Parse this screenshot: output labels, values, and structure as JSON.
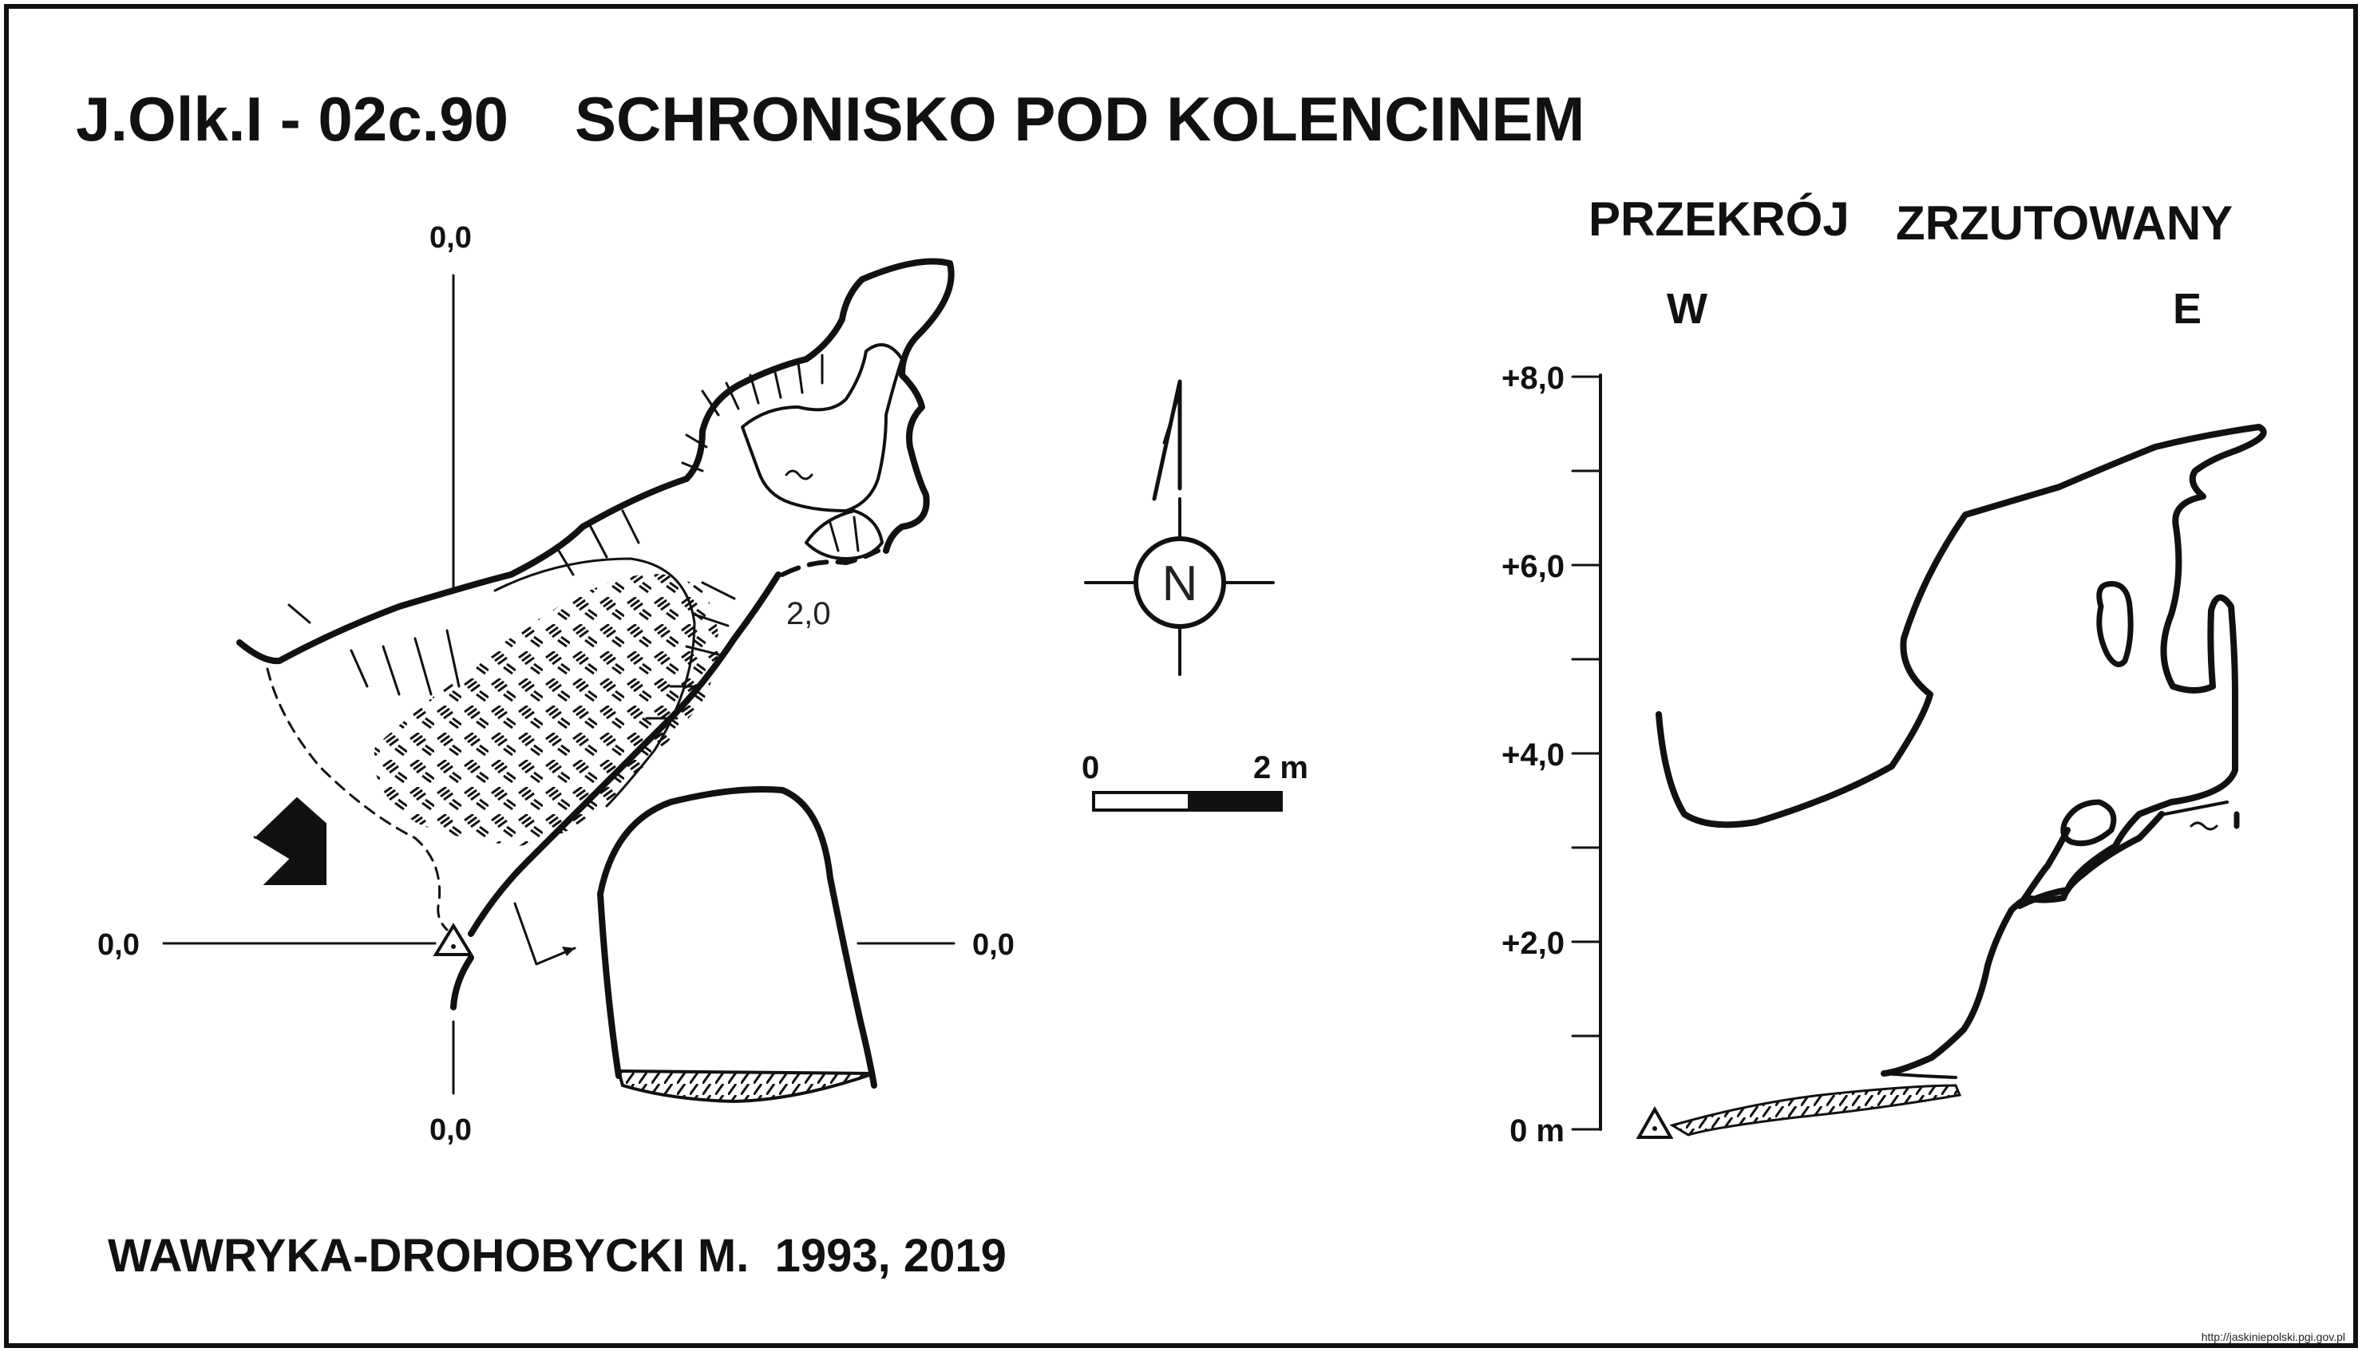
{
  "title": {
    "code": "J.Olk.I - 02c.90",
    "name": "SCHRONISKO POD KOLENCINEM"
  },
  "plan": {
    "axis_label_top": "0,0",
    "axis_label_bottom": "0,0",
    "axis_label_left": "0,0",
    "axis_label_right": "0,0",
    "depth_label": "2,0"
  },
  "compass": {
    "north_label": "N"
  },
  "scale_bar": {
    "label_start": "0",
    "label_end": "2 m"
  },
  "section": {
    "title_word1": "PRZEKRÓJ",
    "title_word2": "ZRZUTOWANY",
    "west_label": "W",
    "east_label": "E",
    "ticks": [
      "+8,0",
      "+6,0",
      "+4,0",
      "+2,0",
      "0 m"
    ]
  },
  "author": "WAWRYKA-DROHOBYCKI M.  1993, 2019",
  "source_url": "http://jaskiniepolski.pgi.gov.pl",
  "colors": {
    "ink": "#111111",
    "paper": "#ffffff"
  }
}
